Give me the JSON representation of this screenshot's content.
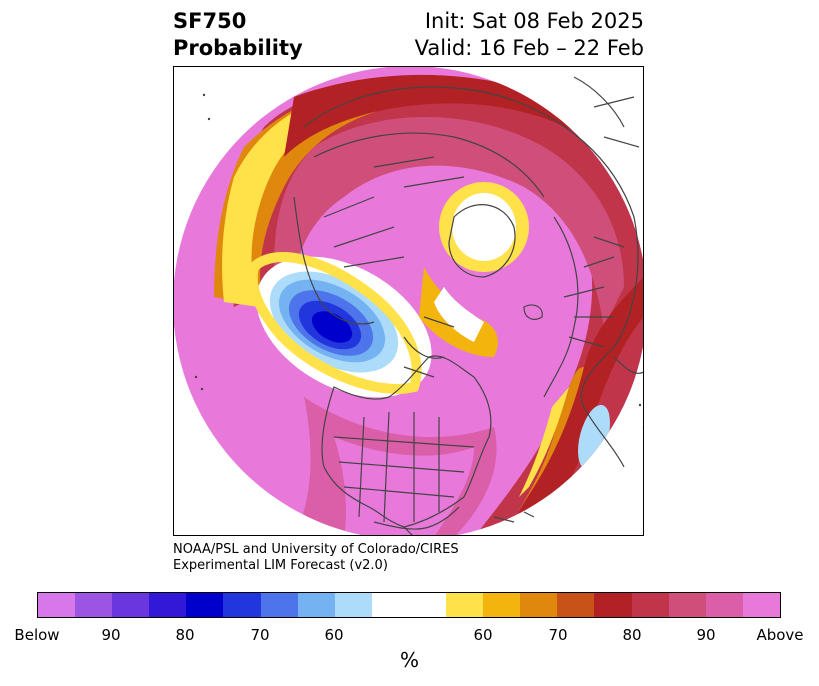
{
  "header": {
    "line1_left": "SF750",
    "line2_left": "Probability",
    "line1_right": "Init: Sat 08 Feb 2025",
    "line2_right": "Valid: 16 Feb – 22 Feb"
  },
  "credit": {
    "line1": "NOAA/PSL and University of Colorado/CIRES",
    "line2": "Experimental LIM Forecast (v2.0)"
  },
  "colorbar": {
    "colors": [
      "#d877ea",
      "#9c55e2",
      "#6a36dd",
      "#3418d8",
      "#0000cc",
      "#2236de",
      "#4d74ea",
      "#74b2f2",
      "#addcfb",
      "#ffffff",
      "#ffffff",
      "#ffe14a",
      "#f3b50d",
      "#e0870e",
      "#c75318",
      "#b22225",
      "#c0354a",
      "#cf4f7a",
      "#db5fa8",
      "#e879db"
    ],
    "tick_labels": [
      "Below",
      "90",
      "80",
      "70",
      "60",
      "60",
      "70",
      "80",
      "90",
      "Above"
    ],
    "unit": "%"
  },
  "map": {
    "projection": "north-polar-stereographic",
    "field": "SF750 probability",
    "features": [
      "coastlines",
      "country-borders",
      "state-borders"
    ]
  }
}
